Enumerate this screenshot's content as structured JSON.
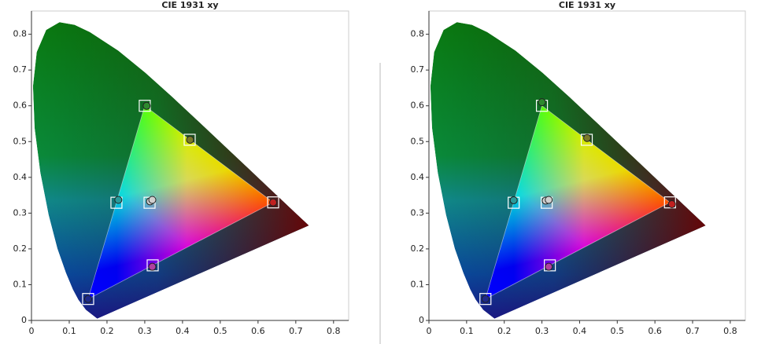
{
  "chart_data": [
    {
      "type": "scatter",
      "title": "CIE 1931 xy",
      "xlim": [
        0,
        0.84
      ],
      "ylim": [
        0,
        0.865
      ],
      "xticks": [
        0,
        0.1,
        0.2,
        0.3,
        0.4,
        0.5,
        0.6,
        0.7,
        0.8
      ],
      "yticks": [
        0,
        0.1,
        0.2,
        0.3,
        0.4,
        0.5,
        0.6,
        0.7,
        0.8
      ],
      "spectral_locus": {
        "x": [
          0.1741,
          0.144,
          0.1241,
          0.1096,
          0.0913,
          0.0687,
          0.0454,
          0.0235,
          0.0082,
          0.0039,
          0.0139,
          0.0389,
          0.0743,
          0.1142,
          0.1547,
          0.2296,
          0.3016,
          0.3731,
          0.4441,
          0.5125,
          0.5752,
          0.627,
          0.6915,
          0.719,
          0.7347
        ],
        "y": [
          0.005,
          0.0297,
          0.0578,
          0.0868,
          0.1327,
          0.2007,
          0.295,
          0.4127,
          0.5384,
          0.6548,
          0.7502,
          0.812,
          0.8338,
          0.8262,
          0.8059,
          0.7543,
          0.6923,
          0.6245,
          0.5547,
          0.4866,
          0.4242,
          0.3725,
          0.3083,
          0.2809,
          0.2653
        ]
      },
      "series": [
        {
          "marker": "square",
          "color": "#ffffff",
          "x": [
            0.64,
            0.3,
            0.15,
            0.225,
            0.321,
            0.419,
            0.3127
          ],
          "y": [
            0.33,
            0.6,
            0.06,
            0.329,
            0.154,
            0.505,
            0.329
          ]
        },
        {
          "marker": "circle",
          "colors": [
            "#c02020",
            "#2e8a2e",
            "#1e2a8a",
            "#2a9a9a",
            "#b040a0",
            "#7a7a2a",
            "#d0d0d0",
            "#d0d0d0"
          ],
          "x": [
            0.64,
            0.305,
            0.15,
            0.23,
            0.32,
            0.42,
            0.314,
            0.32
          ],
          "y": [
            0.33,
            0.6,
            0.06,
            0.337,
            0.15,
            0.505,
            0.333,
            0.337
          ]
        }
      ]
    },
    {
      "type": "scatter",
      "title": "CIE 1931 xy",
      "xlim": [
        0,
        0.84
      ],
      "ylim": [
        0,
        0.865
      ],
      "xticks": [
        0,
        0.1,
        0.2,
        0.3,
        0.4,
        0.5,
        0.6,
        0.7,
        0.8
      ],
      "yticks": [
        0,
        0.1,
        0.2,
        0.3,
        0.4,
        0.5,
        0.6,
        0.7,
        0.8
      ],
      "spectral_locus": {
        "x": [
          0.1741,
          0.144,
          0.1241,
          0.1096,
          0.0913,
          0.0687,
          0.0454,
          0.0235,
          0.0082,
          0.0039,
          0.0139,
          0.0389,
          0.0743,
          0.1142,
          0.1547,
          0.2296,
          0.3016,
          0.3731,
          0.4441,
          0.5125,
          0.5752,
          0.627,
          0.6915,
          0.719,
          0.7347
        ],
        "y": [
          0.005,
          0.0297,
          0.0578,
          0.0868,
          0.1327,
          0.2007,
          0.295,
          0.4127,
          0.5384,
          0.6548,
          0.7502,
          0.812,
          0.8338,
          0.8262,
          0.8059,
          0.7543,
          0.6923,
          0.6245,
          0.5547,
          0.4866,
          0.4242,
          0.3725,
          0.3083,
          0.2809,
          0.2653
        ]
      },
      "series": [
        {
          "marker": "square",
          "color": "#ffffff",
          "x": [
            0.64,
            0.3,
            0.15,
            0.225,
            0.321,
            0.419,
            0.3127
          ],
          "y": [
            0.33,
            0.6,
            0.06,
            0.329,
            0.154,
            0.505,
            0.329
          ]
        },
        {
          "marker": "circle",
          "colors": [
            "#c02020",
            "#2e8a2e",
            "#1e2a8a",
            "#2a9a9a",
            "#b040a0",
            "#7a7a2a",
            "#d0d0d0",
            "#d0d0d0"
          ],
          "x": [
            0.645,
            0.3,
            0.15,
            0.225,
            0.318,
            0.42,
            0.31,
            0.318
          ],
          "y": [
            0.325,
            0.61,
            0.06,
            0.336,
            0.15,
            0.51,
            0.335,
            0.337
          ]
        }
      ]
    }
  ]
}
